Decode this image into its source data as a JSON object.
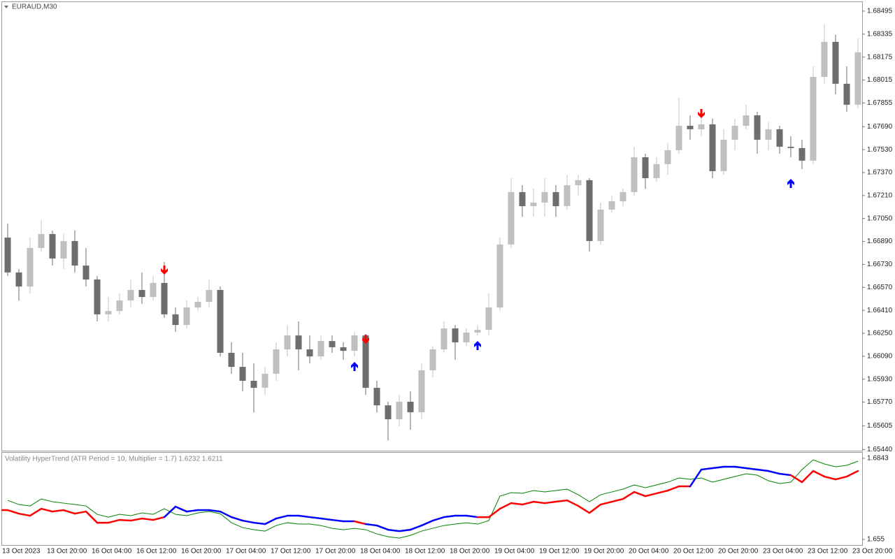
{
  "chart_data": [
    {
      "type": "candlestick",
      "title": "EURAUD,M30",
      "categories": [
        "13 Oct 2023",
        null,
        null,
        null,
        "13 Oct 20:00",
        null,
        null,
        null,
        "16 Oct 04:00",
        null,
        null,
        null,
        "16 Oct 12:00",
        null,
        null,
        null,
        "16 Oct 20:00",
        null,
        null,
        null,
        "17 Oct 04:00",
        null,
        null,
        null,
        "17 Oct 12:00",
        null,
        null,
        null,
        "17 Oct 20:00",
        null,
        null,
        null,
        "18 Oct 04:00",
        null,
        null,
        null,
        "18 Oct 12:00",
        null,
        null,
        null,
        "18 Oct 20:00",
        null,
        null,
        null,
        "19 Oct 04:00",
        null,
        null,
        null,
        "19 Oct 12:00",
        null,
        null,
        null,
        "19 Oct 20:00",
        null,
        null,
        null,
        "20 Oct 04:00",
        null,
        null,
        null,
        "20 Oct 12:00",
        null,
        null,
        null,
        "20 Oct 20:00",
        null,
        null,
        null,
        "23 Oct 04:00",
        null,
        null,
        null,
        "23 Oct 12:00",
        null,
        null,
        null,
        "23 Oct 20:00"
      ],
      "open": [
        1.66917,
        1.66674,
        1.66576,
        1.66844,
        1.66942,
        1.66771,
        1.66893,
        1.66722,
        1.66625,
        1.66382,
        1.66406,
        1.66479,
        1.66552,
        1.66503,
        1.66601,
        1.66382,
        1.66308,
        1.6643,
        1.66469,
        1.66552,
        1.66114,
        1.66016,
        1.65919,
        1.6587,
        1.65968,
        1.66138,
        1.66235,
        1.66138,
        1.66089,
        1.66196,
        1.66153,
        1.66128,
        1.66235,
        1.6587,
        1.65748,
        1.65651,
        1.65773,
        1.657,
        1.65992,
        1.66138,
        1.66284,
        1.66187,
        1.66255,
        1.66274,
        1.6643,
        1.66869,
        1.67234,
        1.67136,
        1.67161,
        1.67234,
        1.67136,
        1.67282,
        1.67317,
        1.66893,
        1.67112,
        1.6717,
        1.67234,
        1.67477,
        1.67331,
        1.67429,
        1.67526,
        1.67696,
        1.67672,
        1.67706,
        1.6738,
        1.67599,
        1.67696,
        1.67769,
        1.67599,
        1.67672,
        1.6755,
        1.67541,
        1.67453,
        1.68037,
        1.68281,
        1.67989,
        1.67843
      ],
      "high": [
        1.67015,
        1.66698,
        1.66917,
        1.67039,
        1.66966,
        1.66942,
        1.66966,
        1.66844,
        1.66649,
        1.66503,
        1.66528,
        1.66625,
        1.66674,
        1.66649,
        1.66747,
        1.6643,
        1.66479,
        1.66503,
        1.66625,
        1.66576,
        1.66187,
        1.66114,
        1.66041,
        1.66016,
        1.66187,
        1.66308,
        1.66333,
        1.66235,
        1.66235,
        1.66235,
        1.66187,
        1.6626,
        1.66245,
        1.65919,
        1.65773,
        1.65821,
        1.65846,
        1.66041,
        1.66162,
        1.66333,
        1.66308,
        1.66284,
        1.66308,
        1.66528,
        1.66917,
        1.67331,
        1.67282,
        1.67258,
        1.67331,
        1.67282,
        1.67355,
        1.67355,
        1.67331,
        1.67161,
        1.67209,
        1.67258,
        1.6755,
        1.67502,
        1.67477,
        1.67575,
        1.67891,
        1.67769,
        1.67794,
        1.67745,
        1.67672,
        1.67745,
        1.67843,
        1.67794,
        1.67721,
        1.67696,
        1.67623,
        1.67599,
        1.6811,
        1.68403,
        1.6833,
        1.6811,
        1.68305
      ],
      "low": [
        1.66649,
        1.66479,
        1.66528,
        1.6682,
        1.66722,
        1.66698,
        1.66674,
        1.66576,
        1.66333,
        1.66333,
        1.66382,
        1.6643,
        1.66455,
        1.66479,
        1.66357,
        1.6626,
        1.66284,
        1.66406,
        1.6643,
        1.66089,
        1.65968,
        1.65846,
        1.657,
        1.65821,
        1.65919,
        1.66089,
        1.65992,
        1.66041,
        1.66065,
        1.66114,
        1.66065,
        1.66089,
        1.65821,
        1.657,
        1.65505,
        1.65602,
        1.65578,
        1.65651,
        1.65943,
        1.66114,
        1.66065,
        1.66162,
        1.66235,
        1.66235,
        1.66406,
        1.66844,
        1.67063,
        1.67063,
        1.67063,
        1.67063,
        1.67112,
        1.67209,
        1.6682,
        1.66869,
        1.67088,
        1.67136,
        1.67209,
        1.67258,
        1.67307,
        1.67355,
        1.67502,
        1.67599,
        1.67623,
        1.67331,
        1.67355,
        1.67526,
        1.67672,
        1.67502,
        1.67526,
        1.67502,
        1.67477,
        1.67394,
        1.67429,
        1.67989,
        1.67916,
        1.67794,
        1.67818
      ],
      "close": [
        1.66674,
        1.66576,
        1.66844,
        1.66942,
        1.66771,
        1.66893,
        1.66722,
        1.66625,
        1.66382,
        1.66406,
        1.66479,
        1.66552,
        1.66503,
        1.66601,
        1.66382,
        1.66308,
        1.6643,
        1.66469,
        1.66552,
        1.66114,
        1.66016,
        1.65919,
        1.6587,
        1.65968,
        1.66138,
        1.66235,
        1.66138,
        1.66089,
        1.66196,
        1.66153,
        1.66128,
        1.66235,
        1.6587,
        1.65748,
        1.65651,
        1.65773,
        1.657,
        1.65992,
        1.66138,
        1.66284,
        1.66187,
        1.66255,
        1.66274,
        1.6643,
        1.66869,
        1.67234,
        1.67136,
        1.67161,
        1.67234,
        1.67136,
        1.67282,
        1.67317,
        1.66893,
        1.67112,
        1.6717,
        1.67234,
        1.67477,
        1.67331,
        1.67429,
        1.67526,
        1.67696,
        1.67672,
        1.67706,
        1.6738,
        1.67599,
        1.67696,
        1.67769,
        1.67599,
        1.67672,
        1.6755,
        1.67541,
        1.67453,
        1.68037,
        1.68281,
        1.67989,
        1.67843,
        1.68208
      ],
      "up_color": "#c0c0c0",
      "down_color": "#6e6e6e",
      "ylim": [
        1.65432,
        1.68558
      ],
      "yticks": [
        1.68495,
        1.68335,
        1.68175,
        1.68015,
        1.67855,
        {
          "value": 1.6769,
          "label": "1.67690"
        },
        {
          "value": 1.6753,
          "label": "1.67530"
        },
        {
          "value": 1.6737,
          "label": "1.67370"
        },
        {
          "value": 1.6721,
          "label": "1.67210"
        },
        {
          "value": 1.6705,
          "label": "1.67050"
        },
        {
          "value": 1.6689,
          "label": "1.66890"
        },
        {
          "value": 1.6673,
          "label": "1.66730"
        },
        {
          "value": 1.6657,
          "label": "1.66570"
        },
        {
          "value": 1.6641,
          "label": "1.66410"
        },
        {
          "value": 1.6625,
          "label": "1.66250"
        },
        {
          "value": 1.6609,
          "label": "1.66090"
        },
        {
          "value": 1.6593,
          "label": "1.65930"
        },
        {
          "value": 1.6577,
          "label": "1.65770"
        },
        1.65605,
        {
          "value": 1.6544,
          "label": "1.65440"
        }
      ],
      "sell_signals": {
        "color": "#ff0000",
        "values": [
          null,
          null,
          null,
          null,
          null,
          null,
          null,
          null,
          null,
          null,
          null,
          null,
          null,
          null,
          1.66688,
          null,
          null,
          null,
          null,
          null,
          null,
          null,
          null,
          null,
          null,
          null,
          null,
          null,
          null,
          null,
          null,
          null,
          1.66206,
          null,
          null,
          null,
          null,
          null,
          null,
          null,
          null,
          null,
          null,
          null,
          null,
          null,
          null,
          null,
          null,
          null,
          null,
          null,
          null,
          null,
          null,
          null,
          null,
          null,
          null,
          null,
          null,
          null,
          1.67779,
          null,
          null,
          null,
          null,
          null,
          null,
          null,
          null,
          null,
          null,
          null,
          null,
          null,
          null
        ]
      },
      "buy_signals": {
        "color": "#0000ff",
        "values": [
          null,
          null,
          null,
          null,
          null,
          null,
          null,
          null,
          null,
          null,
          null,
          null,
          null,
          null,
          null,
          null,
          null,
          null,
          null,
          null,
          null,
          null,
          null,
          null,
          null,
          null,
          null,
          null,
          null,
          null,
          null,
          1.66021,
          null,
          null,
          null,
          null,
          null,
          null,
          null,
          null,
          null,
          null,
          1.66167,
          null,
          null,
          null,
          null,
          null,
          null,
          null,
          null,
          null,
          null,
          null,
          null,
          null,
          null,
          null,
          null,
          null,
          null,
          null,
          null,
          null,
          null,
          null,
          null,
          null,
          null,
          null,
          1.67297,
          null,
          null,
          null,
          null,
          null,
          null
        ]
      }
    },
    {
      "type": "line",
      "title": "Volatility HyperTrend (ATR Period = 10, Multiplier = 1.7) 1.6232 1.6211",
      "series": [
        {
          "color": "#008000",
          "values": [
            1.66912,
            1.66761,
            1.6671,
            1.66963,
            1.66862,
            1.66811,
            1.66761,
            1.6671,
            1.66407,
            1.66306,
            1.66407,
            1.66357,
            1.66458,
            1.66407,
            1.66609,
            1.66407,
            1.66357,
            1.66458,
            1.66508,
            1.66432,
            1.66104,
            1.65927,
            1.65851,
            1.65801,
            1.66003,
            1.66104,
            1.66054,
            1.66054,
            1.66003,
            1.65902,
            1.65851,
            1.65902,
            1.65851,
            1.657,
            1.65599,
            1.65548,
            1.65649,
            1.65801,
            1.65902,
            1.66003,
            1.66054,
            1.66104,
            1.66054,
            1.6618,
            1.67064,
            1.6719,
            1.67165,
            1.67266,
            1.67215,
            1.67266,
            1.67317,
            1.67114,
            1.66862,
            1.67114,
            1.67215,
            1.67317,
            1.67468,
            1.67367,
            1.67468,
            1.67569,
            1.67721,
            1.6767,
            1.67721,
            1.67569,
            1.6767,
            1.67771,
            1.67872,
            1.67822,
            1.6762,
            1.67519,
            1.67569,
            1.68024,
            1.68377,
            1.68226,
            1.68125,
            1.68175,
            1.68327
          ]
        },
        {
          "values": [
            1.66559,
            1.66432,
            1.66357,
            1.66609,
            1.66508,
            1.66559,
            1.66432,
            1.66508,
            1.66104,
            1.66104,
            1.66205,
            1.6618,
            1.66256,
            1.66205,
            1.66306,
            1.66685,
            1.66508,
            1.66559,
            1.66559,
            1.66508,
            1.66306,
            1.6618,
            1.66104,
            1.66054,
            1.66256,
            1.66357,
            1.66357,
            1.66306,
            1.66256,
            1.66205,
            1.66155,
            1.66155,
            1.66054,
            1.66003,
            1.65851,
            1.65801,
            1.65851,
            1.66003,
            1.6618,
            1.66306,
            1.66357,
            1.66357,
            1.66306,
            1.66306,
            1.66609,
            1.66811,
            1.66761,
            1.66862,
            1.66811,
            1.66862,
            1.66912,
            1.6671,
            1.66458,
            1.66761,
            1.66862,
            1.66963,
            1.67215,
            1.67064,
            1.67165,
            1.67266,
            1.67418,
            1.67418,
            1.68024,
            1.68074,
            1.68125,
            1.68125,
            1.68074,
            1.68024,
            1.67973,
            1.67872,
            1.67822,
            1.67569,
            1.67973,
            1.67771,
            1.6767,
            1.67771,
            1.67973
          ],
          "colors": [
            "#ff0000",
            "#ff0000",
            "#ff0000",
            "#ff0000",
            "#ff0000",
            "#ff0000",
            "#ff0000",
            "#ff0000",
            "#ff0000",
            "#ff0000",
            "#ff0000",
            "#ff0000",
            "#ff0000",
            "#ff0000",
            "#ff0000",
            "#0000ff",
            "#0000ff",
            "#0000ff",
            "#0000ff",
            "#0000ff",
            "#0000ff",
            "#0000ff",
            "#0000ff",
            "#0000ff",
            "#0000ff",
            "#0000ff",
            "#0000ff",
            "#0000ff",
            "#0000ff",
            "#0000ff",
            "#0000ff",
            "#0000ff",
            "#ff0000",
            "#0000ff",
            "#0000ff",
            "#0000ff",
            "#0000ff",
            "#0000ff",
            "#0000ff",
            "#0000ff",
            "#0000ff",
            "#0000ff",
            "#0000ff",
            "#ff0000",
            "#ff0000",
            "#ff0000",
            "#ff0000",
            "#ff0000",
            "#ff0000",
            "#ff0000",
            "#ff0000",
            "#ff0000",
            "#ff0000",
            "#ff0000",
            "#ff0000",
            "#ff0000",
            "#ff0000",
            "#ff0000",
            "#ff0000",
            "#ff0000",
            "#ff0000",
            "#ff0000",
            "#0000ff",
            "#0000ff",
            "#0000ff",
            "#0000ff",
            "#0000ff",
            "#0000ff",
            "#0000ff",
            "#0000ff",
            "#0000ff",
            "#ff0000",
            "#ff0000",
            "#ff0000",
            "#ff0000",
            "#ff0000",
            "#ff0000"
          ]
        }
      ],
      "ylim": [
        1.65298,
        1.6863
      ],
      "yticks": [
        1.6843,
        1.655
      ]
    }
  ]
}
